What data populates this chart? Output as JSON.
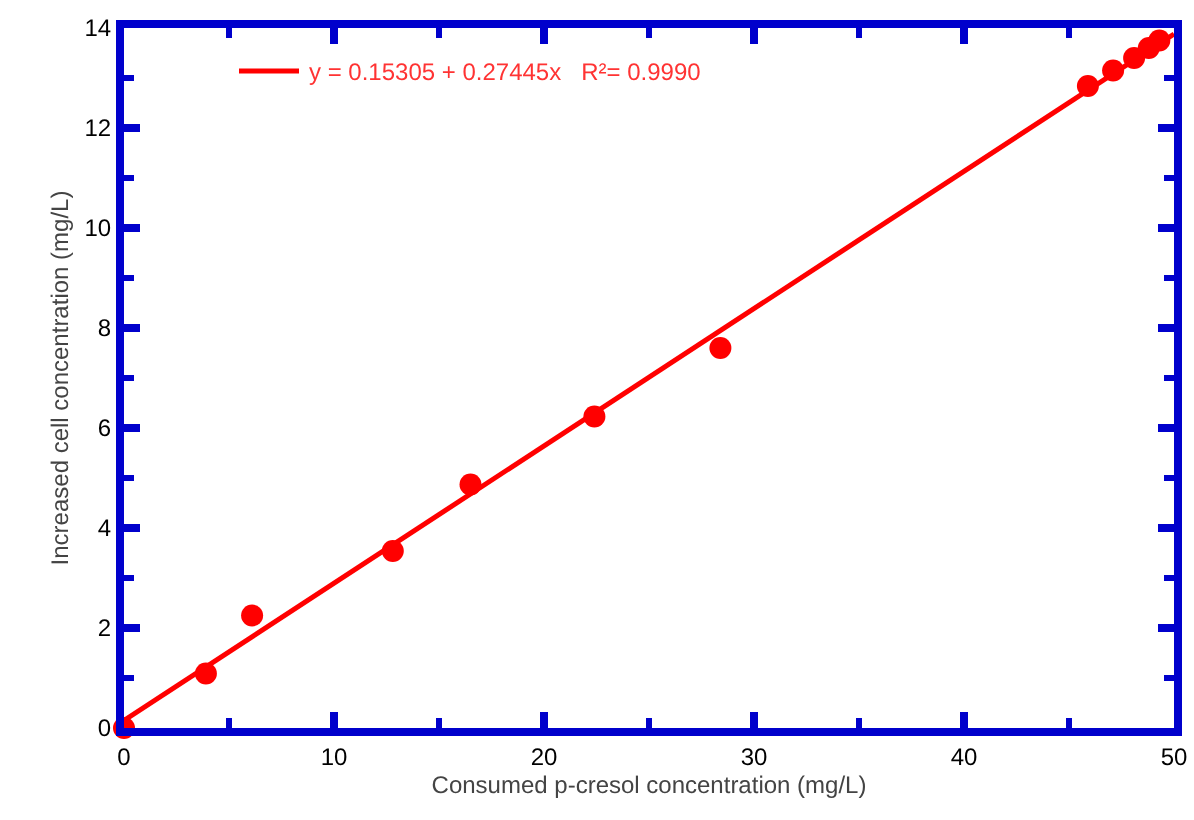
{
  "chart_data": {
    "type": "scatter",
    "xlabel": "Consumed p-cresol concentration (mg/L)",
    "ylabel": "Increased cell concentration (mg/L)",
    "series": [
      {
        "color": "#ff0000",
        "marker": "circle",
        "x": [
          0,
          3.9,
          6.1,
          12.8,
          16.5,
          22.4,
          28.4,
          45.9,
          47.1,
          48.1,
          48.8,
          49.3
        ],
        "values": [
          0,
          1.09,
          2.25,
          3.54,
          4.87,
          6.23,
          7.6,
          12.84,
          13.15,
          13.4,
          13.6,
          13.75
        ]
      },
      {
        "type": "line",
        "name": "y = 0.15305 + 0.27445x   R²= 0.9990",
        "color": "#ff0000",
        "line_style": "solid",
        "x": [
          0,
          50
        ],
        "values": [
          0.15,
          13.88
        ]
      }
    ],
    "xlim": [
      0,
      50
    ],
    "xticks": [
      0,
      10,
      20,
      30,
      40,
      50
    ],
    "ylim": [
      0,
      14
    ],
    "yticks": [
      0,
      2,
      4,
      6,
      8,
      10,
      12,
      14
    ],
    "grid": false,
    "legend": "top left"
  }
}
